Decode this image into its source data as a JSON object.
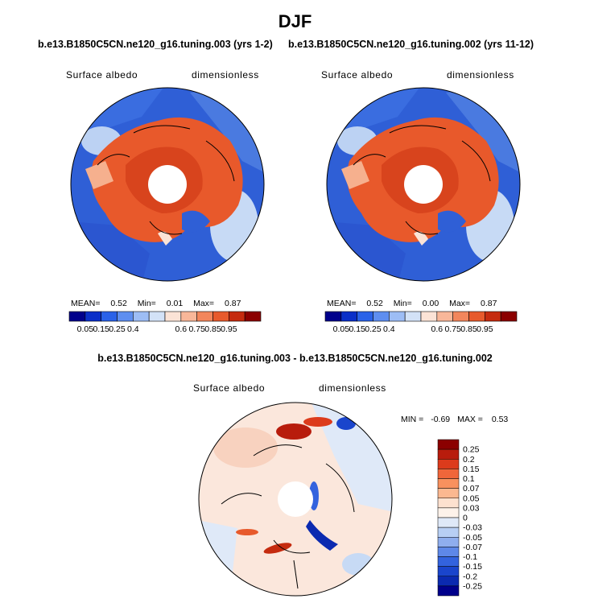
{
  "page": {
    "title": "DJF",
    "left_case_title": "b.e13.B1850C5CN.ne120_g16.tuning.003 (yrs 1-2)",
    "right_case_title": "b.e13.B1850C5CN.ne120_g16.tuning.002 (yrs 11-12)",
    "diff_title": "b.e13.B1850C5CN.ne120_g16.tuning.003 - b.e13.B1850C5CN.ne120_g16.tuning.002"
  },
  "panels": {
    "left": {
      "variable": "Surface albedo",
      "units": "dimensionless",
      "mean_label": "MEAN=",
      "mean": "0.52",
      "min_label": "Min=",
      "min": "0.01",
      "max_label": "Max=",
      "max": "0.87"
    },
    "right": {
      "variable": "Surface albedo",
      "units": "dimensionless",
      "mean_label": "MEAN=",
      "mean": "0.52",
      "min_label": "Min=",
      "min": "0.00",
      "max_label": "Max=",
      "max": "0.87"
    },
    "diff": {
      "variable": "Surface albedo",
      "units": "dimensionless",
      "min_label": "MIN =",
      "min": "-0.69",
      "max_label": "MAX =",
      "max": "0.53"
    }
  },
  "colorbars": {
    "horizontal": {
      "colors": [
        "#00008b",
        "#0a2fc8",
        "#2a62e8",
        "#5e8ef0",
        "#9dbdf5",
        "#d3e2f7",
        "#fbe3d6",
        "#f8b799",
        "#f2865c",
        "#e75a2c",
        "#c52b0f",
        "#8b0000"
      ],
      "labels": [
        "0.05",
        "0.15",
        "0.25",
        "0.4",
        "0.6",
        "0.75",
        "0.85",
        "0.95"
      ]
    },
    "vertical": {
      "colors": [
        "#8b0000",
        "#b81c0c",
        "#dc3b1c",
        "#f0663a",
        "#f8915e",
        "#fbb890",
        "#fde1cf",
        "#fdf2ea",
        "#dfe9f8",
        "#b8cff4",
        "#8faeee",
        "#5e88e8",
        "#3363de",
        "#1a45cc",
        "#0b2ab0",
        "#00008b"
      ],
      "labels": [
        "0.25",
        "0.2",
        "0.15",
        "0.1",
        "0.07",
        "0.05",
        "0.03",
        "0",
        "-0.03",
        "-0.05",
        "-0.07",
        "-0.1",
        "-0.15",
        "-0.2",
        "-0.25"
      ]
    }
  }
}
